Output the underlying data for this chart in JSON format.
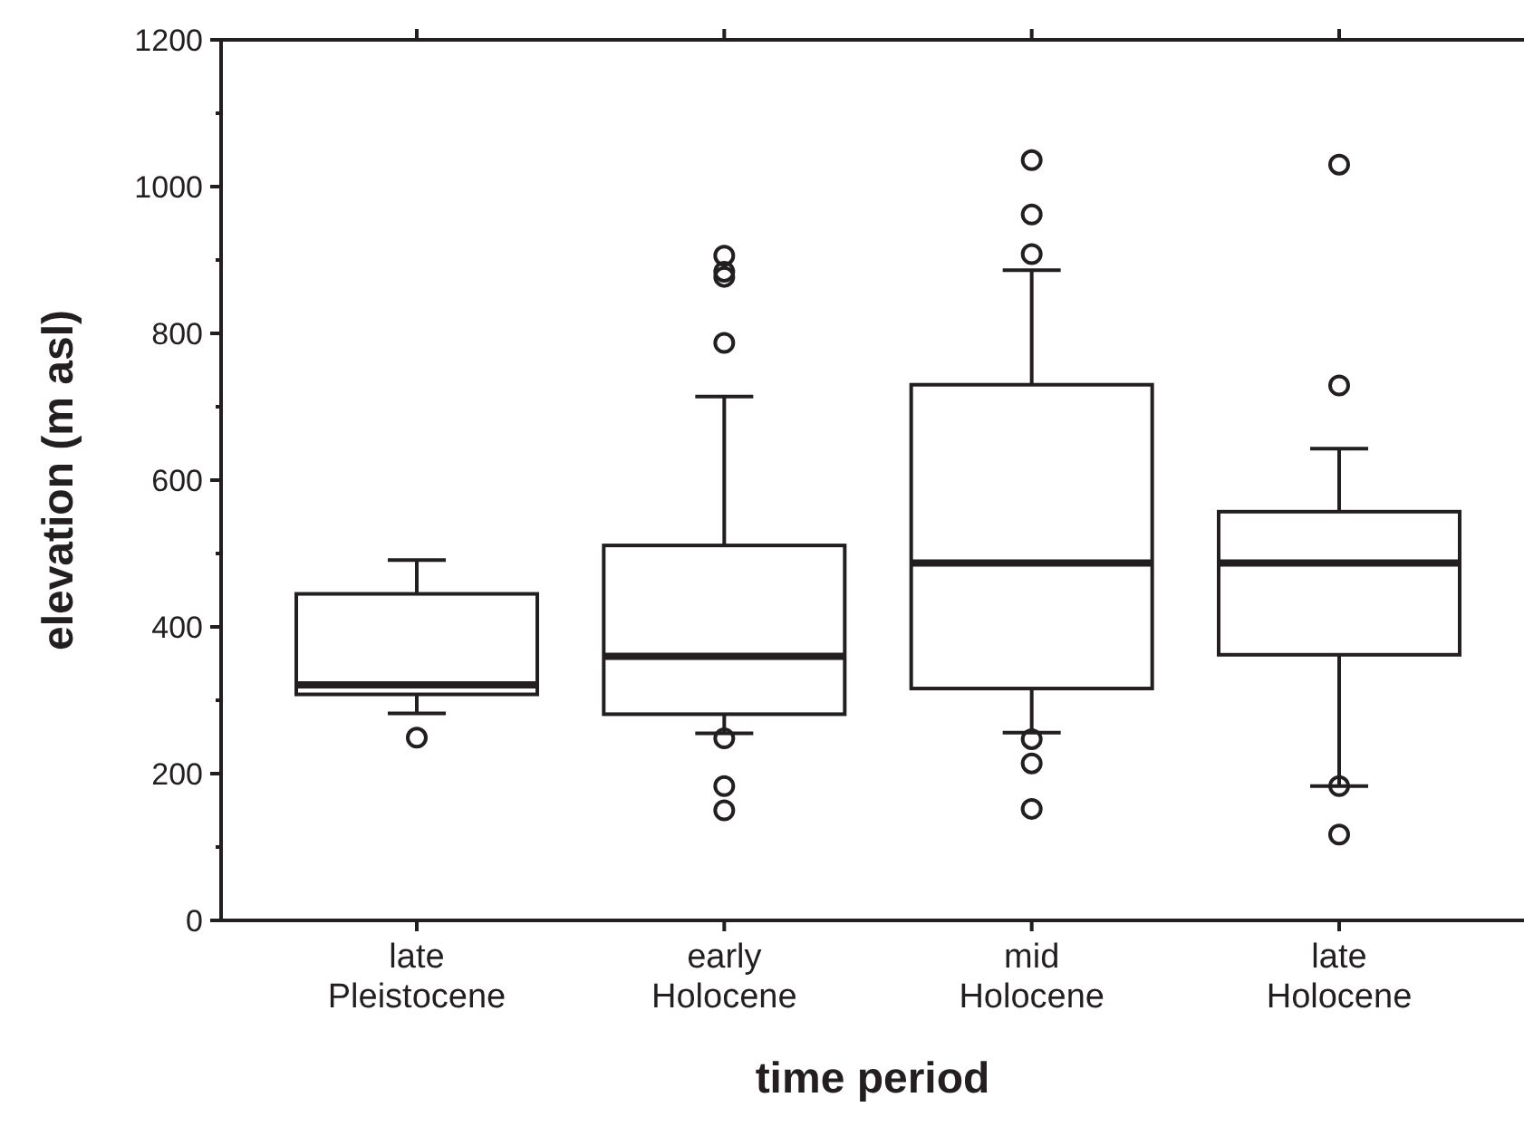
{
  "chart_data": {
    "type": "box",
    "xlabel": "time period",
    "ylabel": "elevation (m asl)",
    "categories": [
      "late\nPleistocene",
      "early\nHolocene",
      "mid\nHolocene",
      "late\nHolocene"
    ],
    "ylim": [
      0,
      1200
    ],
    "yticks": [
      0,
      {
        "value": 100,
        "label": null
      },
      200,
      {
        "value": 300,
        "label": null
      },
      400,
      {
        "value": 500,
        "label": null
      },
      600,
      {
        "value": 700,
        "label": null
      },
      800,
      {
        "value": 900,
        "label": null
      },
      1000,
      {
        "value": 1100,
        "label": null
      },
      1200
    ],
    "grid": false,
    "boxes": [
      {
        "low": 282,
        "q1": 308,
        "median": 321,
        "q3": 445,
        "high": 491,
        "outliers": [
          249
        ]
      },
      {
        "low": 255,
        "q1": 281,
        "median": 360,
        "q3": 511,
        "high": 714,
        "outliers": [
          906,
          884,
          877,
          787,
          248,
          183,
          150
        ]
      },
      {
        "low": 256,
        "q1": 316,
        "median": 487,
        "q3": 730,
        "high": 886,
        "outliers": [
          1036,
          962,
          908,
          247,
          214,
          152
        ]
      },
      {
        "low": 183,
        "q1": 362,
        "median": 487,
        "q3": 557,
        "high": 643,
        "outliers": [
          1030,
          729,
          183,
          117
        ]
      }
    ]
  }
}
